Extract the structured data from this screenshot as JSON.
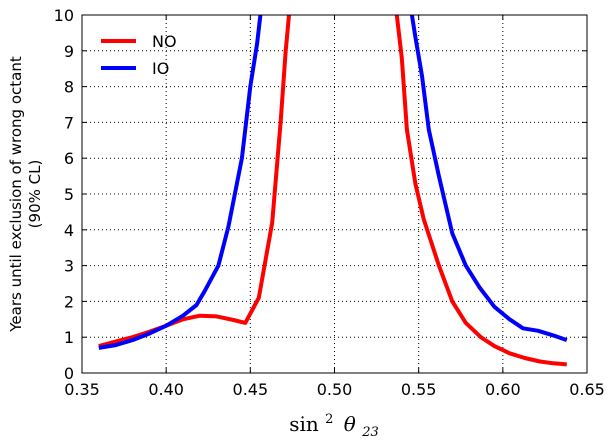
{
  "chart_data": {
    "type": "line",
    "xlabel_base": "sin",
    "xlabel_sup": "2",
    "xlabel_theta": "θ",
    "xlabel_sub": "23",
    "ylabel_line1": "Years until exclusion of wrong octant",
    "ylabel_line2": "(90% CL)",
    "xlim": [
      0.35,
      0.65
    ],
    "ylim": [
      0,
      10
    ],
    "xticks": [
      "0.35",
      "0.40",
      "0.45",
      "0.50",
      "0.55",
      "0.60",
      "0.65"
    ],
    "yticks": [
      "0",
      "1",
      "2",
      "3",
      "4",
      "5",
      "6",
      "7",
      "8",
      "9",
      "10"
    ],
    "grid": true,
    "legend_position": "top-left",
    "series": [
      {
        "name": "NO",
        "color": "#ff0000",
        "segments": [
          [
            [
              0.36,
              0.75
            ],
            [
              0.37,
              0.88
            ],
            [
              0.38,
              1.0
            ],
            [
              0.39,
              1.15
            ],
            [
              0.4,
              1.32
            ],
            [
              0.41,
              1.5
            ],
            [
              0.42,
              1.6
            ],
            [
              0.43,
              1.58
            ],
            [
              0.44,
              1.48
            ],
            [
              0.447,
              1.4
            ],
            [
              0.455,
              2.1
            ],
            [
              0.463,
              4.2
            ],
            [
              0.468,
              7.0
            ],
            [
              0.471,
              9.0
            ],
            [
              0.473,
              10.0
            ]
          ],
          [
            [
              0.537,
              10.0
            ],
            [
              0.54,
              8.8
            ],
            [
              0.543,
              6.8
            ],
            [
              0.548,
              5.3
            ],
            [
              0.553,
              4.3
            ],
            [
              0.562,
              3.0
            ],
            [
              0.57,
              2.0
            ],
            [
              0.578,
              1.4
            ],
            [
              0.587,
              1.0
            ],
            [
              0.595,
              0.75
            ],
            [
              0.604,
              0.55
            ],
            [
              0.613,
              0.42
            ],
            [
              0.622,
              0.32
            ],
            [
              0.63,
              0.27
            ],
            [
              0.638,
              0.24
            ]
          ]
        ]
      },
      {
        "name": "IO",
        "color": "#0000ff",
        "segments": [
          [
            [
              0.36,
              0.7
            ],
            [
              0.37,
              0.78
            ],
            [
              0.38,
              0.92
            ],
            [
              0.39,
              1.1
            ],
            [
              0.4,
              1.32
            ],
            [
              0.41,
              1.6
            ],
            [
              0.418,
              1.9
            ],
            [
              0.423,
              2.3
            ],
            [
              0.431,
              3.0
            ],
            [
              0.437,
              4.1
            ],
            [
              0.445,
              6.0
            ],
            [
              0.45,
              8.0
            ],
            [
              0.454,
              9.2
            ],
            [
              0.456,
              10.0
            ]
          ],
          [
            [
              0.546,
              10.0
            ],
            [
              0.548,
              9.4
            ],
            [
              0.552,
              8.3
            ],
            [
              0.556,
              6.8
            ],
            [
              0.562,
              5.5
            ],
            [
              0.57,
              3.9
            ],
            [
              0.578,
              3.0
            ],
            [
              0.586,
              2.4
            ],
            [
              0.595,
              1.85
            ],
            [
              0.604,
              1.5
            ],
            [
              0.612,
              1.25
            ],
            [
              0.621,
              1.18
            ],
            [
              0.63,
              1.05
            ],
            [
              0.638,
              0.92
            ]
          ]
        ]
      }
    ]
  }
}
